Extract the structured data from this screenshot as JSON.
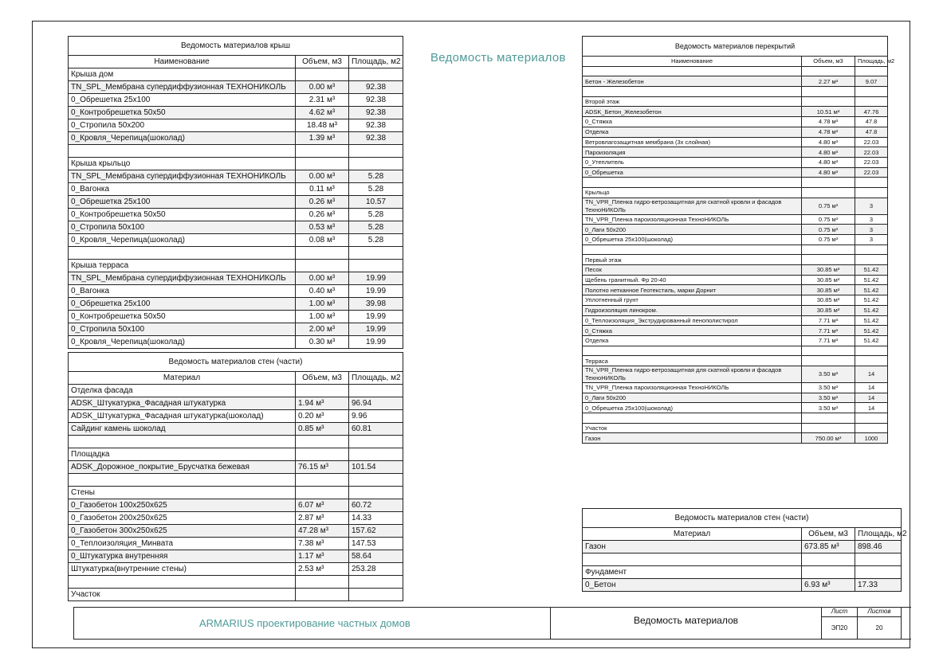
{
  "center_title": "Ведомость материалов",
  "roof_table": {
    "title": "Ведомость материалов крыш",
    "columns": [
      "Наименование",
      "Объем, м3",
      "Площадь, м2"
    ],
    "rows": [
      {
        "kind": "group",
        "name": "Крыша дом"
      },
      {
        "name": "TN_SPL_Мембрана супердиффузионная ТЕХНОНИКОЛЬ",
        "volume": "0.00 м³",
        "area": "92.38"
      },
      {
        "name": "0_Обрешетка 25x100",
        "volume": "2.31 м³",
        "area": "92.38"
      },
      {
        "name": "0_Контробрешетка 50x50",
        "volume": "4.62 м³",
        "area": "92.38"
      },
      {
        "name": "0_Стропила 50x200",
        "volume": "18.48 м³",
        "area": "92.38"
      },
      {
        "name": "0_Кровля_Черепица(шоколад)",
        "volume": "1.39 м³",
        "area": "92.38"
      },
      {
        "kind": "empty"
      },
      {
        "kind": "group",
        "name": "Крыша крыльцо"
      },
      {
        "name": "TN_SPL_Мембрана супердиффузионная ТЕХНОНИКОЛЬ",
        "volume": "0.00 м³",
        "area": "5.28"
      },
      {
        "name": "0_Вагонка",
        "volume": "0.11 м³",
        "area": "5.28"
      },
      {
        "name": "0_Обрешетка 25x100",
        "volume": "0.26 м³",
        "area": "10.57"
      },
      {
        "name": "0_Контробрешетка 50x50",
        "volume": "0.26 м³",
        "area": "5.28"
      },
      {
        "name": "0_Стропила 50x100",
        "volume": "0.53 м³",
        "area": "5.28"
      },
      {
        "name": "0_Кровля_Черепица(шоколад)",
        "volume": "0.08 м³",
        "area": "5.28"
      },
      {
        "kind": "empty"
      },
      {
        "kind": "group",
        "name": "Крыша терраса"
      },
      {
        "name": "TN_SPL_Мембрана супердиффузионная ТЕХНОНИКОЛЬ",
        "volume": "0.00 м³",
        "area": "19.99"
      },
      {
        "name": "0_Вагонка",
        "volume": "0.40 м³",
        "area": "19.99"
      },
      {
        "name": "0_Обрешетка 25x100",
        "volume": "1.00 м³",
        "area": "39.98"
      },
      {
        "name": "0_Контробрешетка 50x50",
        "volume": "1.00 м³",
        "area": "19.99"
      },
      {
        "name": "0_Стропила 50x100",
        "volume": "2.00 м³",
        "area": "19.99"
      },
      {
        "name": "0_Кровля_Черепица(шоколад)",
        "volume": "0.30 м³",
        "area": "19.99"
      }
    ]
  },
  "walls_table": {
    "title": "Ведомость материалов стен (части)",
    "columns": [
      "Материал",
      "Объем, м3",
      "Площадь, м2"
    ],
    "rows": [
      {
        "kind": "group",
        "name": "Отделка фасада"
      },
      {
        "name": "ADSK_Штукатурка_Фасадная штукатурка",
        "volume": "1.94 м³",
        "area": "96.94"
      },
      {
        "name": "ADSK_Штукатурка_Фасадная штукатурка(шоколад)",
        "volume": "0.20 м³",
        "area": "9.96"
      },
      {
        "name": "Сайдинг  камень шоколад",
        "volume": "0.85 м³",
        "area": "60.81"
      },
      {
        "kind": "empty"
      },
      {
        "kind": "group",
        "name": "Площадка"
      },
      {
        "name": "ADSK_Дорожное_покрытие_Брусчатка бежевая",
        "volume": "76.15 м³",
        "area": "101.54"
      },
      {
        "kind": "empty"
      },
      {
        "kind": "group",
        "name": "Стены"
      },
      {
        "name": "0_Газобетон 100x250x625",
        "volume": "6.07 м³",
        "area": "60.72"
      },
      {
        "name": "0_Газобетон 200x250x625",
        "volume": "2.87 м³",
        "area": "14.33"
      },
      {
        "name": "0_Газобетон 300x250x625",
        "volume": "47.28 м³",
        "area": "157.62"
      },
      {
        "name": "0_Теплоизоляция_Минвата",
        "volume": "7.38 м³",
        "area": "147.53"
      },
      {
        "name": "0_Штукатурка внутренняя",
        "volume": "1.17 м³",
        "area": "58.64"
      },
      {
        "name": "Штукатурка(внутренние  стены)",
        "volume": "2.53 м³",
        "area": "253.28"
      },
      {
        "kind": "empty"
      },
      {
        "kind": "group",
        "name": "Участок"
      }
    ]
  },
  "floors_table": {
    "title": "Ведомость материалов перекрытий",
    "columns": [
      "Наименование",
      "Объем, м3",
      "Площадь, м2"
    ],
    "rows": [
      {
        "kind": "empty"
      },
      {
        "name": "Бетон - Железобетон",
        "volume": "2.27 м³",
        "area": "9.07"
      },
      {
        "kind": "empty"
      },
      {
        "kind": "group",
        "name": "Второй этаж"
      },
      {
        "name": "ADSK_Бетон_Железобетон",
        "volume": "10.51 м³",
        "area": "47.76"
      },
      {
        "name": "0_Стяжка",
        "volume": "4.78 м³",
        "area": "47.8"
      },
      {
        "name": "Отделка",
        "volume": "4.78 м³",
        "area": "47.8"
      },
      {
        "name": "Ветровлагозащитная мембрана (3х слойная)",
        "volume": "4.80 м³",
        "area": "22.03"
      },
      {
        "name": "Пароизоляция",
        "volume": "4.80 м³",
        "area": "22.03"
      },
      {
        "name": "0_Утеплитель",
        "volume": "4.80 м³",
        "area": "22.03"
      },
      {
        "name": "0_Обрешетка",
        "volume": "4.80 м³",
        "area": "22.03"
      },
      {
        "kind": "empty"
      },
      {
        "kind": "group",
        "name": "Крыльцо"
      },
      {
        "name": "TN_VPR_Пленка гидро-ветрозащитная для скатной кровли и фасадов ТехноНИКОЛЬ",
        "volume": "0.75 м³",
        "area": "3",
        "two": true
      },
      {
        "name": "TN_VPR_Пленка пароизоляционная ТехноНИКОЛЬ",
        "volume": "0.75 м³",
        "area": "3"
      },
      {
        "name": "0_Лаги 50x200",
        "volume": "0.75 м³",
        "area": "3"
      },
      {
        "name": "0_Обрешетка 25x100(шоколад)",
        "volume": "0.75 м³",
        "area": "3"
      },
      {
        "kind": "empty"
      },
      {
        "kind": "group",
        "name": "Первый этаж"
      },
      {
        "name": "Песок",
        "volume": "30.85 м³",
        "area": "51.42"
      },
      {
        "name": "Щебень гранитный. Фр 20-40",
        "volume": "30.85 м³",
        "area": "51.42"
      },
      {
        "name": "Полотно нетканное Геотекстиль, марки Дорнит",
        "volume": "30.85 м³",
        "area": "51.42"
      },
      {
        "name": "Уплотненный грунт",
        "volume": "30.85 м³",
        "area": "51.42"
      },
      {
        "name": "Гидроизоляция линокром.",
        "volume": "30.85 м³",
        "area": "51.42"
      },
      {
        "name": "0_Теплоизоляция_Экструдированный пенополистирол",
        "volume": "7.71 м³",
        "area": "51.42"
      },
      {
        "name": "0_Стяжка",
        "volume": "7.71 м³",
        "area": "51.42"
      },
      {
        "name": "Отделка",
        "volume": "7.71 м³",
        "area": "51.42"
      },
      {
        "kind": "empty"
      },
      {
        "kind": "group",
        "name": "Терраса"
      },
      {
        "name": "TN_VPR_Пленка гидро-ветрозащитная для скатной кровли и фасадов ТехноНИКОЛЬ",
        "volume": "3.50 м³",
        "area": "14",
        "two": true
      },
      {
        "name": "TN_VPR_Пленка пароизоляционная ТехноНИКОЛЬ",
        "volume": "3.50 м³",
        "area": "14"
      },
      {
        "name": "0_Лаги 50x200",
        "volume": "3.50 м³",
        "area": "14"
      },
      {
        "name": "0_Обрешетка 25x100(шоколад)",
        "volume": "3.50 м³",
        "area": "14"
      },
      {
        "kind": "empty"
      },
      {
        "kind": "group",
        "name": "Участок"
      },
      {
        "name": "Газон",
        "volume": "750.00 м³",
        "area": "1000"
      }
    ]
  },
  "walls_table_2": {
    "title": "Ведомость материалов стен (части)",
    "columns": [
      "Материал",
      "Объем, м3",
      "Площадь, м2"
    ],
    "rows": [
      {
        "name": "Газон",
        "volume": "673.85 м³",
        "area": "898.46"
      },
      {
        "kind": "empty"
      },
      {
        "kind": "group",
        "name": "Фундамент"
      },
      {
        "name": "0_Бетон",
        "volume": "6.93 м³",
        "area": "17.33"
      }
    ]
  },
  "title_block": {
    "company": "ARMARIUS проектирование частных домов",
    "sheet_name": "Ведомость материалов",
    "sheet_label": "Лист",
    "sheet_value": "ЭП20",
    "sheets_label": "Листов",
    "sheets_value": "20"
  },
  "colors": {
    "accent": "#4f9a98",
    "lines": "#222222",
    "row_shade": "#f1f1f1"
  }
}
